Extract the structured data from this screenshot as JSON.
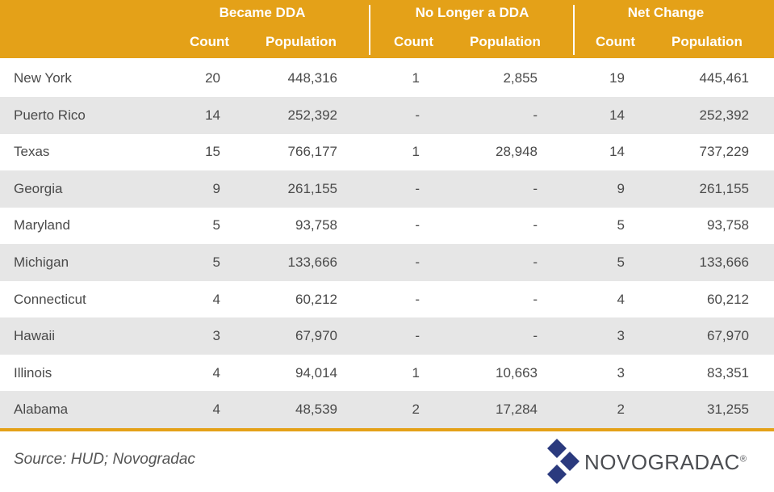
{
  "header": {
    "groups": [
      "Became DDA",
      "No Longer a DDA",
      "Net Change"
    ],
    "sub_count": "Count",
    "sub_population": "Population"
  },
  "rows": [
    {
      "state": "New York",
      "became_count": "20",
      "became_pop": "448,316",
      "nolonger_count": "1",
      "nolonger_pop": "2,855",
      "net_count": "19",
      "net_pop": "445,461"
    },
    {
      "state": "Puerto Rico",
      "became_count": "14",
      "became_pop": "252,392",
      "nolonger_count": "-",
      "nolonger_pop": "-",
      "net_count": "14",
      "net_pop": "252,392"
    },
    {
      "state": "Texas",
      "became_count": "15",
      "became_pop": "766,177",
      "nolonger_count": "1",
      "nolonger_pop": "28,948",
      "net_count": "14",
      "net_pop": "737,229"
    },
    {
      "state": "Georgia",
      "became_count": "9",
      "became_pop": "261,155",
      "nolonger_count": "-",
      "nolonger_pop": "-",
      "net_count": "9",
      "net_pop": "261,155"
    },
    {
      "state": "Maryland",
      "became_count": "5",
      "became_pop": "93,758",
      "nolonger_count": "-",
      "nolonger_pop": "-",
      "net_count": "5",
      "net_pop": "93,758"
    },
    {
      "state": "Michigan",
      "became_count": "5",
      "became_pop": "133,666",
      "nolonger_count": "-",
      "nolonger_pop": "-",
      "net_count": "5",
      "net_pop": "133,666"
    },
    {
      "state": "Connecticut",
      "became_count": "4",
      "became_pop": "60,212",
      "nolonger_count": "-",
      "nolonger_pop": "-",
      "net_count": "4",
      "net_pop": "60,212"
    },
    {
      "state": "Hawaii",
      "became_count": "3",
      "became_pop": "67,970",
      "nolonger_count": "-",
      "nolonger_pop": "-",
      "net_count": "3",
      "net_pop": "67,970"
    },
    {
      "state": "Illinois",
      "became_count": "4",
      "became_pop": "94,014",
      "nolonger_count": "1",
      "nolonger_pop": "10,663",
      "net_count": "3",
      "net_pop": "83,351"
    },
    {
      "state": "Alabama",
      "became_count": "4",
      "became_pop": "48,539",
      "nolonger_count": "2",
      "nolonger_pop": "17,284",
      "net_count": "2",
      "net_pop": "31,255"
    }
  ],
  "footer": {
    "source": "Source: HUD; Novogradac",
    "logo_text": "NOVOGRADAC",
    "logo_mark": "®"
  },
  "colors": {
    "header_bg": "#e4a118",
    "stripe": "#e6e6e6",
    "logo_blue": "#2b3a7e"
  }
}
